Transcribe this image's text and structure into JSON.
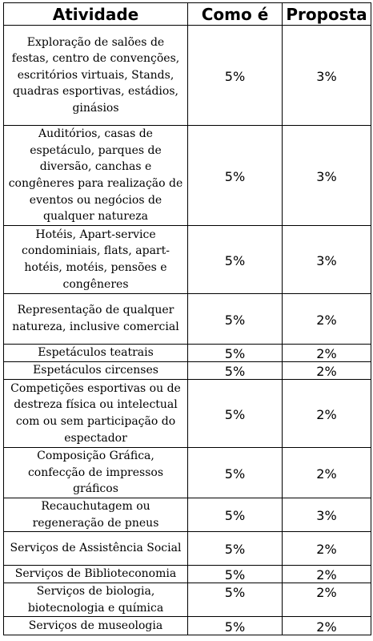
{
  "table": {
    "headers": [
      "Atividade",
      "Como é",
      "Proposta"
    ],
    "rows": [
      {
        "atividade": "Exploração de salões de festas, centro de convenções, escritórios virtuais, Stands, quadras esportivas, estádios, ginásios",
        "como_e": "5%",
        "proposta": "3%"
      },
      {
        "atividade": "Auditórios, casas de espetáculo, parques de diversão, canchas e congêneres para realização de eventos ou negócios de qualquer natureza",
        "como_e": "5%",
        "proposta": "3%"
      },
      {
        "atividade": "Hotéis, Apart-service condominiais, flats, apart-hotéis, motéis, pensões e congêneres",
        "como_e": "5%",
        "proposta": "3%"
      },
      {
        "atividade": "Representação de qualquer natureza, inclusive comercial",
        "como_e": "5%",
        "proposta": "2%"
      },
      {
        "atividade": "Espetáculos teatrais",
        "como_e": "5%",
        "proposta": "2%"
      },
      {
        "atividade": "Espetáculos circenses",
        "como_e": "5%",
        "proposta": "2%"
      },
      {
        "atividade": "Competições esportivas ou de destreza física ou intelectual com ou sem participação do espectador",
        "como_e": "5%",
        "proposta": "2%"
      },
      {
        "atividade": "Composição Gráfica, confecção de impressos gráficos",
        "como_e": "5%",
        "proposta": "2%"
      },
      {
        "atividade": "Recauchutagem ou regeneração de pneus",
        "como_e": "5%",
        "proposta": "3%"
      },
      {
        "atividade": "Serviços de Assistência Social",
        "como_e": "5%",
        "proposta": "2%"
      },
      {
        "atividade": "Serviços de Biblioteconomia",
        "como_e": "5%",
        "proposta": "2%"
      },
      {
        "atividade": "Serviços de biologia, biotecnologia e química",
        "como_e": "5%",
        "proposta": "2%"
      },
      {
        "atividade": "Serviços de museologia",
        "como_e": "5%",
        "proposta": "2%"
      }
    ]
  }
}
